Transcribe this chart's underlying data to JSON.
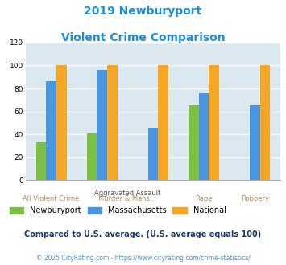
{
  "title_line1": "2019 Newburyport",
  "title_line2": "Violent Crime Comparison",
  "newburyport": [
    33,
    41,
    0,
    65,
    0
  ],
  "massachusetts": [
    86,
    96,
    45,
    76,
    65
  ],
  "national": [
    100,
    100,
    100,
    100,
    100
  ],
  "n_groups": 5,
  "green": "#7bc043",
  "blue": "#4b96e0",
  "orange": "#f5a623",
  "title_color": "#1a8fe0",
  "bg_color": "#dce8f0",
  "ylim": [
    0,
    120
  ],
  "yticks": [
    0,
    20,
    40,
    60,
    80,
    100,
    120
  ],
  "footnote": "Compared to U.S. average. (U.S. average equals 100)",
  "copyright": "© 2025 CityRating.com - https://www.cityrating.com/crime-statistics/",
  "legend_labels": [
    "Newburyport",
    "Massachusetts",
    "National"
  ],
  "label_color": "#b0906a",
  "footnote_color": "#1a3a6a",
  "copyright_color": "#4b8fd0"
}
